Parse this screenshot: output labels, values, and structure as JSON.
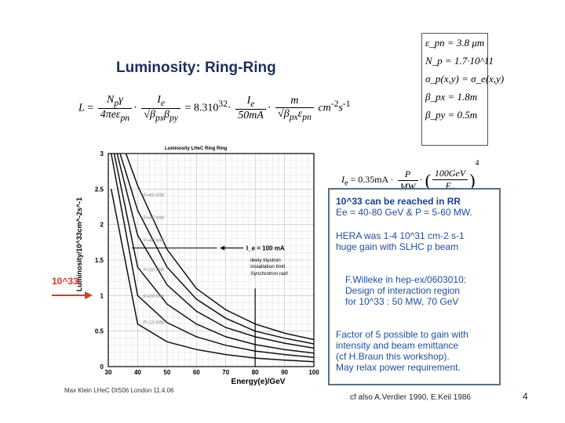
{
  "title": "Luminosity: Ring-Ring",
  "formula": {
    "lhs": "L",
    "f1_num": "N",
    "f1_num_sub": "p",
    "f1_num_tail": "γ",
    "f1_den": "4πeε",
    "f1_den_sub": "pn",
    "f2_num": "I",
    "f2_num_sub": "e",
    "f2_den": "√β",
    "f2_den_sub": "px",
    "f2_den_tail": "β",
    "f2_den_sub2": "py",
    "coef": "8.310",
    "coef_exp": "32",
    "f3_num": "I",
    "f3_num_sub": "e",
    "f3_den": "50mA",
    "f4_num": "m",
    "f4_den": "√β",
    "f4_den_sub": "px",
    "f4_den_tail": "ε",
    "f4_den_sub2": "pn",
    "units": "cm",
    "units_exp": "-2",
    "units_s": "s",
    "units_s_exp": "-1"
  },
  "params": [
    "ε_pn = 3.8 μm",
    "N_p = 1.7·10^11",
    "σ_p(x,y) = σ_e(x,y)",
    "β_px = 1.8m",
    "β_py = 0.5m"
  ],
  "ie_formula": {
    "lhs": "I",
    "lhs_sub": "e",
    "value": "= 0.35mA ·",
    "f1_num": "P",
    "f1_den": "MW",
    "f2_num": "100GeV",
    "f2_den": "E",
    "f2_den_sub": "e",
    "exp": "4"
  },
  "info": {
    "p1_l1": "10^33 can be reached in RR",
    "p1_l2": "Ee = 40-80 GeV & P = 5-60 MW.",
    "p2_l1": "HERA was 1-4 10^31 cm-2 s-1",
    "p2_l2": "huge gain with SLHC p beam",
    "p3_l1": "F.Willeke in hep-ex/0603010:",
    "p3_l2": "Design of interaction region",
    "p3_l3": "for 10^33 : 50 MW, 70 GeV",
    "p4_l1": "Factor of 5 possible to gain with",
    "p4_l2": "intensity and beam emittance",
    "p4_l3": "(cf H.Braun this workshop).",
    "p4_l4": "May relax power requirement."
  },
  "ref_note": "cf also A.Verdier 1990, E.Keil 1986",
  "page_number": "4",
  "footer_left": "Max Klein LHeC DIS06 London 11.4.06",
  "marker_label": "10^33",
  "chart_data": {
    "type": "line",
    "title": "Luminosity LHeC Ring Ring",
    "xlabel": "Energy(e)/GeV",
    "ylabel": "Luminosity/10^33cm^-2s^-1",
    "xlim": [
      30,
      100
    ],
    "ylim": [
      0,
      3
    ],
    "xticks": [
      30,
      40,
      50,
      60,
      70,
      80,
      90,
      100
    ],
    "yticks": [
      0,
      0.5,
      1,
      1.5,
      2,
      2.5,
      3
    ],
    "series": [
      {
        "name": "P=60 MW",
        "x": [
          36,
          40,
          50,
          60,
          70,
          80,
          90,
          100
        ],
        "y": [
          3.0,
          2.55,
          1.65,
          1.1,
          0.8,
          0.6,
          0.47,
          0.38
        ]
      },
      {
        "name": "P=50 MW",
        "x": [
          34,
          40,
          50,
          60,
          70,
          80,
          90,
          100
        ],
        "y": [
          3.0,
          2.2,
          1.4,
          0.95,
          0.68,
          0.5,
          0.4,
          0.32
        ]
      },
      {
        "name": "P=40 MW",
        "x": [
          33,
          40,
          50,
          60,
          70,
          80,
          90,
          100
        ],
        "y": [
          3.0,
          1.85,
          1.15,
          0.78,
          0.55,
          0.42,
          0.33,
          0.26
        ]
      },
      {
        "name": "P=30 MW",
        "x": [
          32,
          40,
          50,
          60,
          70,
          80,
          90,
          100
        ],
        "y": [
          3.0,
          1.4,
          0.88,
          0.6,
          0.42,
          0.31,
          0.24,
          0.19
        ]
      },
      {
        "name": "P=20 MW",
        "x": [
          31,
          40,
          50,
          60,
          70,
          80,
          90,
          100
        ],
        "y": [
          3.0,
          1.0,
          0.62,
          0.42,
          0.3,
          0.22,
          0.17,
          0.13
        ]
      },
      {
        "name": "P=10 MW",
        "x": [
          31,
          40,
          50,
          60,
          70,
          80,
          90,
          100
        ],
        "y": [
          2.5,
          0.6,
          0.35,
          0.24,
          0.17,
          0.12,
          0.09,
          0.07
        ]
      }
    ],
    "annotations": [
      {
        "text": "I_e = 100 mA",
        "y": 1.67
      },
      {
        "text": "likely klystron installation limit",
        "x": 80
      },
      {
        "text": "Synchrotron rad!"
      }
    ]
  }
}
